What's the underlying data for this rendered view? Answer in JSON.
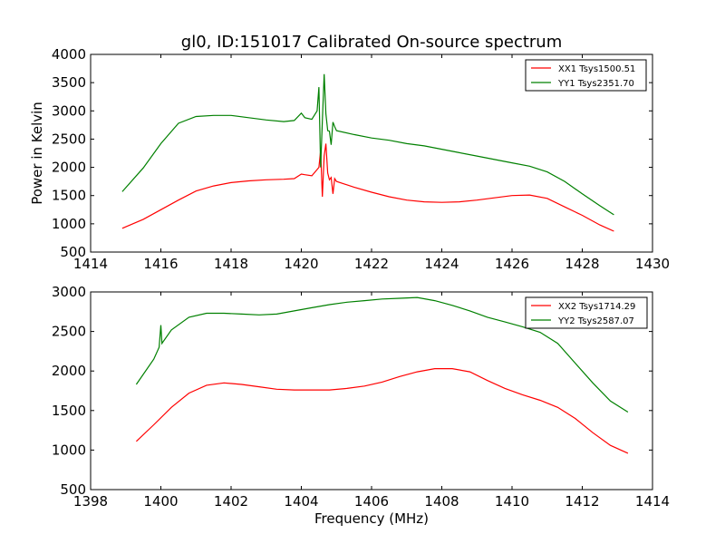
{
  "chart_data": [
    {
      "type": "line",
      "title": "gl0, ID:151017 Calibrated On-source spectrum",
      "xlabel": "",
      "ylabel": "Power in Kelvin",
      "xlim": [
        1414,
        1430
      ],
      "ylim": [
        500,
        4000
      ],
      "xticks": [
        1414,
        1416,
        1418,
        1420,
        1422,
        1424,
        1426,
        1428,
        1430
      ],
      "yticks": [
        500,
        1000,
        1500,
        2000,
        2500,
        3000,
        3500,
        4000
      ],
      "grid": false,
      "legend_position": "top-right",
      "series": [
        {
          "name": "XX1 Tsys1500.51",
          "color": "#ff0000",
          "x": [
            1414.9,
            1415.5,
            1416.0,
            1416.5,
            1417.0,
            1417.5,
            1418.0,
            1418.5,
            1419.0,
            1419.5,
            1419.8,
            1420.0,
            1420.1,
            1420.3,
            1420.5,
            1420.55,
            1420.6,
            1420.65,
            1420.7,
            1420.75,
            1420.8,
            1420.85,
            1420.9,
            1420.95,
            1421.0,
            1421.5,
            1422.0,
            1422.5,
            1423.0,
            1423.5,
            1424.0,
            1424.5,
            1425.0,
            1425.5,
            1426.0,
            1426.5,
            1427.0,
            1427.5,
            1428.0,
            1428.5,
            1428.9
          ],
          "y": [
            920,
            1080,
            1250,
            1420,
            1580,
            1670,
            1730,
            1760,
            1780,
            1790,
            1800,
            1880,
            1870,
            1850,
            2000,
            2300,
            1480,
            2200,
            2420,
            1900,
            1780,
            1820,
            1530,
            1800,
            1750,
            1650,
            1560,
            1480,
            1420,
            1390,
            1380,
            1390,
            1420,
            1460,
            1500,
            1510,
            1450,
            1300,
            1150,
            980,
            870
          ]
        },
        {
          "name": "YY1 Tsys2351.70",
          "color": "#008000",
          "x": [
            1414.9,
            1415.5,
            1416.0,
            1416.5,
            1417.0,
            1417.5,
            1418.0,
            1418.5,
            1419.0,
            1419.5,
            1419.8,
            1420.0,
            1420.1,
            1420.3,
            1420.45,
            1420.5,
            1420.55,
            1420.6,
            1420.65,
            1420.7,
            1420.75,
            1420.8,
            1420.85,
            1420.9,
            1420.95,
            1421.0,
            1421.5,
            1422.0,
            1422.5,
            1423.0,
            1423.5,
            1424.0,
            1424.5,
            1425.0,
            1425.5,
            1426.0,
            1426.5,
            1427.0,
            1427.5,
            1428.0,
            1428.5,
            1428.9
          ],
          "y": [
            1570,
            1990,
            2420,
            2780,
            2900,
            2920,
            2920,
            2880,
            2840,
            2810,
            2830,
            2960,
            2880,
            2850,
            3000,
            3420,
            2000,
            2820,
            3650,
            2950,
            2650,
            2640,
            2400,
            2800,
            2720,
            2650,
            2580,
            2520,
            2480,
            2420,
            2380,
            2320,
            2260,
            2200,
            2140,
            2080,
            2020,
            1920,
            1750,
            1530,
            1320,
            1160
          ]
        }
      ]
    },
    {
      "type": "line",
      "title": "",
      "xlabel": "Frequency (MHz)",
      "ylabel": "",
      "xlim": [
        1398,
        1414
      ],
      "ylim": [
        500,
        3000
      ],
      "xticks": [
        1398,
        1400,
        1402,
        1404,
        1406,
        1408,
        1410,
        1412,
        1414
      ],
      "yticks": [
        500,
        1000,
        1500,
        2000,
        2500,
        3000
      ],
      "grid": false,
      "legend_position": "top-right",
      "series": [
        {
          "name": "XX2 Tsys1714.29",
          "color": "#ff0000",
          "x": [
            1399.3,
            1399.8,
            1400.3,
            1400.8,
            1401.3,
            1401.8,
            1402.3,
            1402.8,
            1403.3,
            1403.8,
            1404.3,
            1404.8,
            1405.3,
            1405.8,
            1406.3,
            1406.8,
            1407.3,
            1407.8,
            1408.3,
            1408.8,
            1409.3,
            1409.8,
            1410.3,
            1410.8,
            1411.3,
            1411.8,
            1412.3,
            1412.8,
            1413.3
          ],
          "y": [
            1110,
            1320,
            1540,
            1720,
            1820,
            1850,
            1830,
            1800,
            1770,
            1760,
            1760,
            1760,
            1780,
            1810,
            1860,
            1930,
            1990,
            2030,
            2030,
            1990,
            1880,
            1780,
            1700,
            1630,
            1540,
            1400,
            1220,
            1060,
            960
          ]
        },
        {
          "name": "YY2 Tsys2587.07",
          "color": "#008000",
          "x": [
            1399.3,
            1399.8,
            1399.95,
            1400.0,
            1400.03,
            1400.3,
            1400.8,
            1401.3,
            1401.8,
            1402.3,
            1402.8,
            1403.3,
            1403.8,
            1404.3,
            1404.8,
            1405.3,
            1405.8,
            1406.3,
            1406.8,
            1407.3,
            1407.8,
            1408.3,
            1408.8,
            1409.3,
            1409.8,
            1410.3,
            1410.8,
            1411.3,
            1411.8,
            1412.3,
            1412.8,
            1413.3
          ],
          "y": [
            1830,
            2150,
            2300,
            2580,
            2350,
            2520,
            2680,
            2730,
            2730,
            2720,
            2710,
            2720,
            2760,
            2800,
            2840,
            2870,
            2890,
            2910,
            2920,
            2930,
            2890,
            2830,
            2760,
            2680,
            2620,
            2560,
            2490,
            2350,
            2100,
            1850,
            1620,
            1480
          ]
        }
      ]
    }
  ]
}
